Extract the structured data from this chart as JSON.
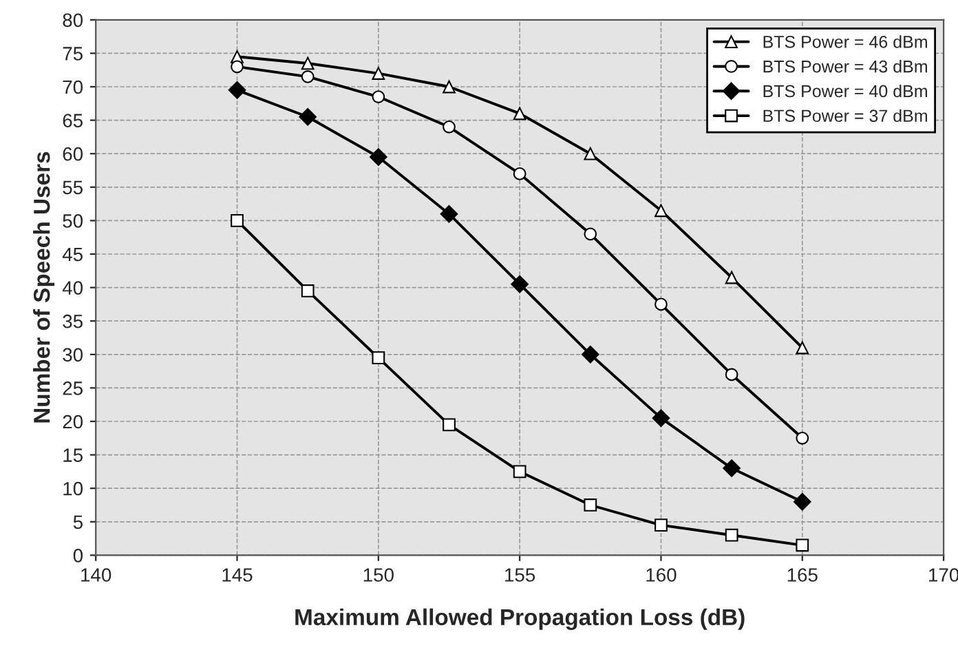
{
  "chart_data": {
    "type": "line",
    "xlabel": "Maximum Allowed Propagation Loss (dB)",
    "ylabel": "Number of Speech Users",
    "x": [
      145,
      147.5,
      150,
      152.5,
      155,
      157.5,
      160,
      162.5,
      165
    ],
    "series": [
      {
        "name": "BTS Power = 46 dBm",
        "color": "#000000",
        "marker": "triangle",
        "values": [
          74.5,
          73.5,
          72,
          70,
          66,
          60,
          51.5,
          41.5,
          31
        ]
      },
      {
        "name": "BTS Power = 43 dBm",
        "color": "#000000",
        "marker": "circle",
        "values": [
          73,
          71.5,
          68.5,
          64,
          57,
          48,
          37.5,
          27,
          17.5
        ]
      },
      {
        "name": "BTS Power = 40 dBm",
        "color": "#000000",
        "marker": "diamond",
        "values": [
          69.5,
          65.5,
          59.5,
          51,
          40.5,
          30,
          20.5,
          13,
          8
        ]
      },
      {
        "name": "BTS Power = 37 dBm",
        "color": "#000000",
        "marker": "square",
        "values": [
          50,
          39.5,
          29.5,
          19.5,
          12.5,
          7.5,
          4.5,
          3,
          1.5
        ]
      }
    ],
    "xlim": [
      140,
      170
    ],
    "xticks": [
      140,
      145,
      150,
      155,
      160,
      165,
      170
    ],
    "ylim": [
      0,
      80
    ],
    "yticks": [
      0,
      5,
      10,
      15,
      20,
      25,
      30,
      35,
      40,
      45,
      50,
      55,
      60,
      65,
      70,
      75,
      80
    ],
    "grid": true,
    "legend": "top right",
    "line_style": "solid"
  }
}
